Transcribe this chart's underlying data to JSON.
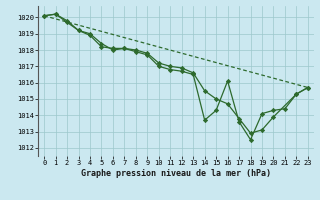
{
  "background_color": "#cbe8f0",
  "grid_color": "#9dc8cc",
  "line_color": "#2d6a2d",
  "title": "Graphe pression niveau de la mer (hPa)",
  "xlim": [
    -0.5,
    23.5
  ],
  "ylim": [
    1011.5,
    1020.7
  ],
  "yticks": [
    1012,
    1013,
    1014,
    1015,
    1016,
    1017,
    1018,
    1019,
    1020
  ],
  "xticks": [
    0,
    1,
    2,
    3,
    4,
    5,
    6,
    7,
    8,
    9,
    10,
    11,
    12,
    13,
    14,
    15,
    16,
    17,
    18,
    19,
    20,
    21,
    22,
    23
  ],
  "line1_x": [
    0,
    1,
    2,
    3,
    4,
    5,
    6,
    7,
    8,
    9,
    10,
    11,
    12,
    13,
    14,
    15,
    16,
    17,
    18,
    19,
    20,
    22,
    23
  ],
  "line1_y": [
    1020.1,
    1020.2,
    1019.8,
    1019.2,
    1019.0,
    1018.4,
    1018.0,
    1018.1,
    1018.0,
    1017.8,
    1017.2,
    1017.0,
    1016.9,
    1016.6,
    1015.5,
    1015.0,
    1014.7,
    1013.8,
    1012.9,
    1013.1,
    1013.9,
    1015.3,
    1015.7
  ],
  "line2_x": [
    0,
    1,
    2,
    3,
    4,
    5,
    6,
    7,
    8,
    9,
    10,
    11,
    12,
    13,
    14,
    15,
    16,
    17,
    18,
    19,
    20,
    21,
    22,
    23
  ],
  "line2_y": [
    1020.1,
    1020.2,
    1019.7,
    1019.2,
    1018.9,
    1018.2,
    1018.1,
    1018.1,
    1017.9,
    1017.7,
    1017.0,
    1016.8,
    1016.7,
    1016.5,
    1013.7,
    1014.3,
    1016.1,
    1013.6,
    1012.5,
    1014.1,
    1014.3,
    1014.4,
    1015.3,
    1015.7
  ],
  "line3_x": [
    0,
    23
  ],
  "line3_y": [
    1020.1,
    1015.7
  ],
  "marker": "D",
  "markersize": 2.2,
  "linewidth": 0.9
}
